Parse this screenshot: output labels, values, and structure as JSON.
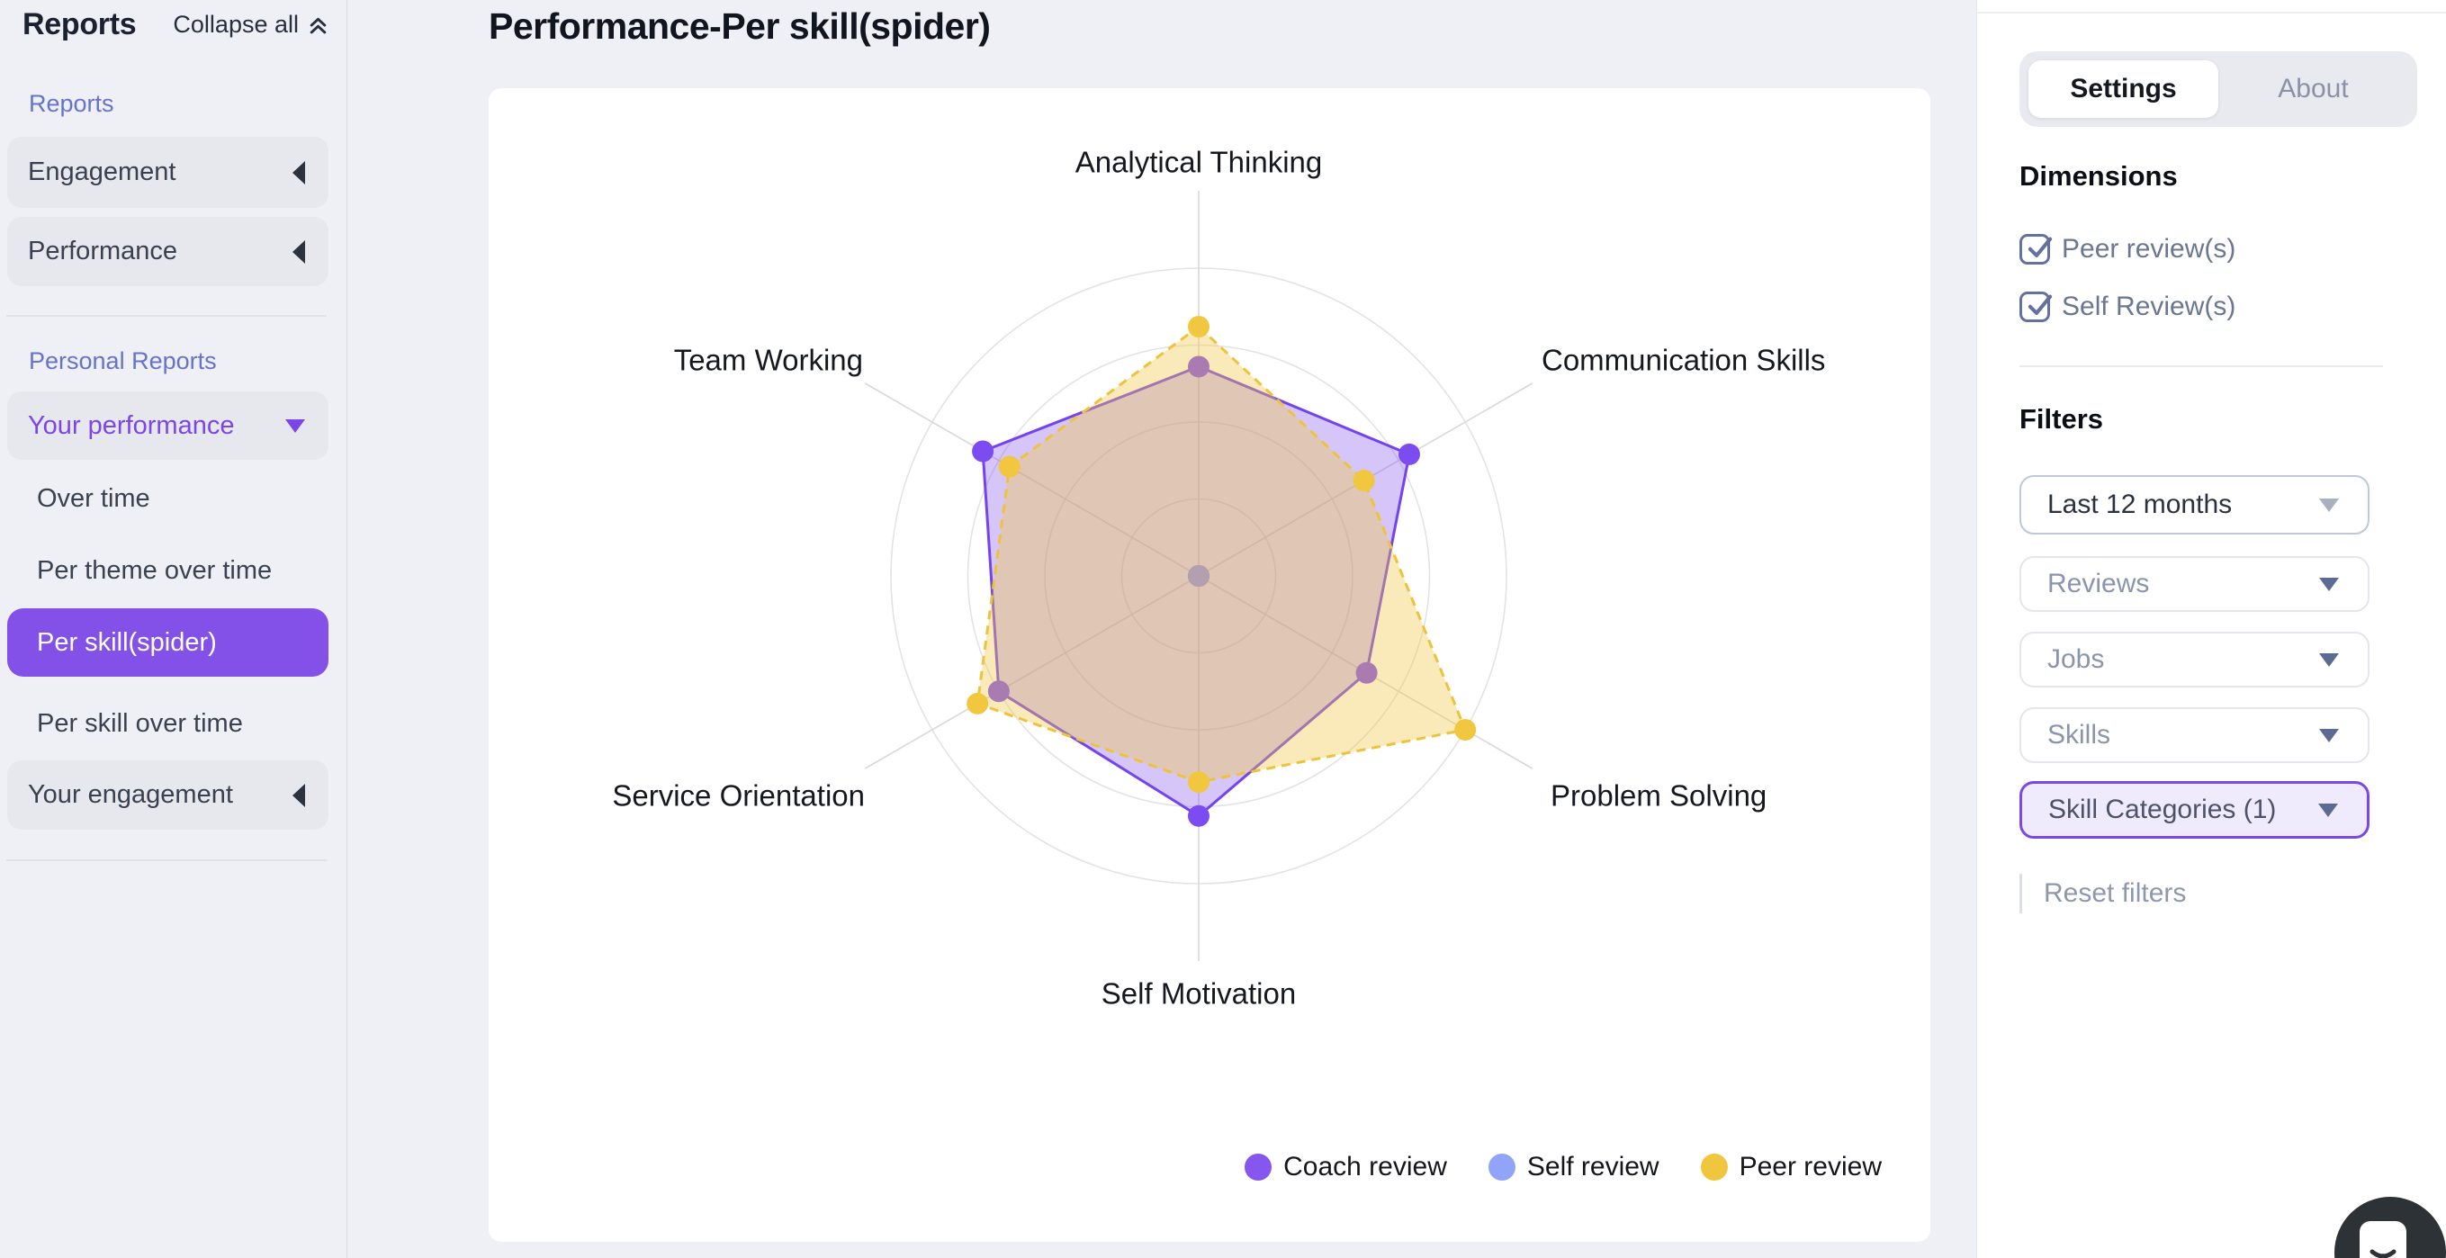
{
  "sidebar": {
    "title": "Reports",
    "collapse_all": "Collapse all",
    "reports_section": "Reports",
    "engagement": "Engagement",
    "performance": "Performance",
    "personal_section": "Personal Reports",
    "your_performance": "Your performance",
    "items": [
      "Over time",
      "Per theme over time",
      "Per skill(spider)",
      "Per skill over time"
    ],
    "selected_item": "Per skill(spider)",
    "your_engagement": "Your engagement"
  },
  "main": {
    "title": "Performance-Per skill(spider)"
  },
  "chart_data": {
    "type": "radar",
    "title": "Performance-Per skill(spider)",
    "categories": [
      "Analytical Thinking",
      "Communication Skills",
      "Problem Solving",
      "Self Motivation",
      "Service Orientation",
      "Team Working"
    ],
    "scale_max": 10,
    "rings": 4,
    "ring_values": [
      2.5,
      5,
      7.5,
      10
    ],
    "grid": "circular",
    "series": [
      {
        "name": "Coach review",
        "color": "#7343ef",
        "dot": "#7c4cf0",
        "fill": "rgba(128,80,235,0.33)",
        "line": "solid",
        "values": [
          6.8,
          7.9,
          6.3,
          7.8,
          7.5,
          8.1
        ]
      },
      {
        "name": "Self review",
        "color": "#92a4f8",
        "dot": "#92a4f8",
        "fill": "rgba(146,164,248,0.35)",
        "line": "solid",
        "values": [
          0,
          0,
          0,
          0,
          0,
          0
        ]
      },
      {
        "name": "Peer review",
        "color": "#eec33c",
        "dot": "#f1c73f",
        "fill": "rgba(242,200,70,0.38)",
        "line": "dashed",
        "values": [
          8.1,
          6.2,
          10,
          6.7,
          8.3,
          7.1
        ]
      }
    ],
    "draw_order": [
      1,
      0,
      2
    ],
    "legend": [
      "Coach review",
      "Self review",
      "Peer review"
    ],
    "legend_colors": [
      "#8657ee",
      "#92a4f8",
      "#f1c63f"
    ],
    "legend_position": "bottom-right"
  },
  "panel": {
    "tabs": [
      "Settings",
      "About"
    ],
    "active_tab": "Settings",
    "dimensions_title": "Dimensions",
    "checkboxes": [
      {
        "label": "Peer review(s)",
        "checked": true
      },
      {
        "label": "Self Review(s)",
        "checked": true
      }
    ],
    "filters_title": "Filters",
    "filters": [
      "Last 12 months",
      "Reviews",
      "Jobs",
      "Skills",
      "Skill Categories (1)"
    ],
    "reset_label": "Reset filters"
  },
  "colors": {
    "accent": "#8351e7",
    "accent_text": "#7c45e8",
    "section_label": "#6773c6",
    "slate": "#64719c",
    "chat_bg": "#2d3237"
  }
}
